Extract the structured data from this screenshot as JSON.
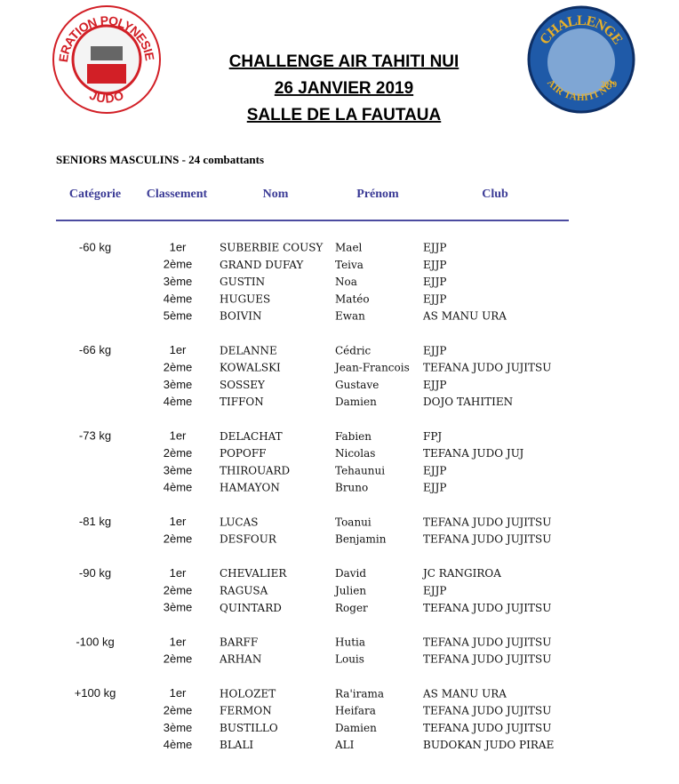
{
  "logo_left": {
    "top": "FEDERATION POLYNESIENNE",
    "bottom": "JUDO"
  },
  "logo_right": {
    "top": "CHALLENGE",
    "bottom": "AIR TAHITI NUI",
    "year": "2019"
  },
  "header": {
    "title_lines": [
      "CHALLENGE AIR TAHITI NUI",
      "26 JANVIER 2019",
      "SALLE DE LA FAUTAUA"
    ]
  },
  "subtitle": "SENIORS MASCULINS -  24 combattants",
  "table": {
    "columns": [
      "Catégorie",
      "Classement",
      "Nom",
      "Prénom",
      "Club"
    ],
    "groups": [
      {
        "category": "-60 kg",
        "rows": [
          [
            "1er",
            "SUBERBIE COUSY",
            "Mael",
            "EJJP"
          ],
          [
            "2ème",
            "GRAND DUFAY",
            "Teiva",
            "EJJP"
          ],
          [
            "3ème",
            "GUSTIN",
            "Noa",
            "EJJP"
          ],
          [
            "4ème",
            "HUGUES",
            "Matéo",
            "EJJP"
          ],
          [
            "5ème",
            "BOIVIN",
            "Ewan",
            "AS MANU URA"
          ]
        ]
      },
      {
        "category": "-66 kg",
        "rows": [
          [
            "1er",
            "DELANNE",
            "Cédric",
            "EJJP"
          ],
          [
            "2ème",
            "KOWALSKI",
            "Jean-Francois",
            "TEFANA JUDO JUJITSU"
          ],
          [
            "3ème",
            "SOSSEY",
            "Gustave",
            "EJJP"
          ],
          [
            "4ème",
            "TIFFON",
            "Damien",
            "DOJO TAHITIEN"
          ]
        ]
      },
      {
        "category": "-73 kg",
        "rows": [
          [
            "1er",
            "DELACHAT",
            "Fabien",
            "FPJ"
          ],
          [
            "2ème",
            "POPOFF",
            "Nicolas",
            "TEFANA JUDO JUJ"
          ],
          [
            "3ème",
            "THIROUARD",
            "Tehaunui",
            "EJJP"
          ],
          [
            "4ème",
            "HAMAYON",
            "Bruno",
            "EJJP"
          ]
        ]
      },
      {
        "category": "-81 kg",
        "rows": [
          [
            "1er",
            "LUCAS",
            "Toanui",
            "TEFANA JUDO JUJITSU"
          ],
          [
            "2ème",
            "DESFOUR",
            "Benjamin",
            "TEFANA JUDO JUJITSU"
          ]
        ]
      },
      {
        "category": "-90 kg",
        "rows": [
          [
            "1er",
            "CHEVALIER",
            "David",
            "JC RANGIROA"
          ],
          [
            "2ème",
            "RAGUSA",
            "Julien",
            "EJJP"
          ],
          [
            "3ème",
            "QUINTARD",
            "Roger",
            "TEFANA JUDO JUJITSU"
          ]
        ]
      },
      {
        "category": "-100 kg",
        "rows": [
          [
            "1er",
            "BARFF",
            "Hutia",
            "TEFANA JUDO JUJITSU"
          ],
          [
            "2ème",
            "ARHAN",
            "Louis",
            "TEFANA JUDO JUJITSU"
          ]
        ]
      },
      {
        "category": "+100 kg",
        "rows": [
          [
            "1er",
            "HOLOZET",
            "Ra'irama",
            "AS MANU URA"
          ],
          [
            "2ème",
            "FERMON",
            "Heifara",
            "TEFANA JUDO JUJITSU"
          ],
          [
            "3ème",
            "BUSTILLO",
            "Damien",
            "TEFANA JUDO JUJITSU"
          ],
          [
            "4ème",
            "BLALI",
            "ALI",
            "BUDOKAN JUDO PIRAE"
          ]
        ]
      }
    ]
  }
}
